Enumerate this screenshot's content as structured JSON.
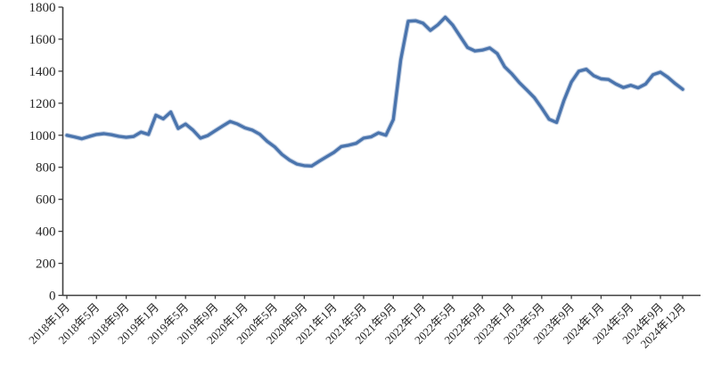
{
  "chart_data": {
    "type": "line",
    "title": "",
    "xlabel": "",
    "ylabel": "",
    "grid": false,
    "legend": "none",
    "frequency": "monthly",
    "line_color": "#4a74ad",
    "line_halo_color": "#93abce",
    "axis_color": "#3f3f3f",
    "tick_label_color": "#262626",
    "ylim": [
      0,
      1800
    ],
    "y_ticks": [
      0,
      200,
      400,
      600,
      800,
      1000,
      1200,
      1400,
      1600,
      1800
    ],
    "x_tick_labels": [
      "2018年1月",
      "2018年5月",
      "2018年9月",
      "2019年1月",
      "2019年5月",
      "2019年9月",
      "2020年1月",
      "2020年5月",
      "2020年9月",
      "2021年1月",
      "2021年5月",
      "2021年9月",
      "2022年1月",
      "2022年5月",
      "2022年9月",
      "2023年1月",
      "2023年5月",
      "2023年9月",
      "2024年1月",
      "2024年5月",
      "2024年9月",
      "2024年12月"
    ],
    "x_tick_month_indices": [
      0,
      4,
      8,
      12,
      16,
      20,
      24,
      28,
      32,
      36,
      40,
      44,
      48,
      52,
      56,
      60,
      64,
      68,
      72,
      76,
      80,
      83
    ],
    "x": [
      "2018-01",
      "2018-02",
      "2018-03",
      "2018-04",
      "2018-05",
      "2018-06",
      "2018-07",
      "2018-08",
      "2018-09",
      "2018-10",
      "2018-11",
      "2018-12",
      "2019-01",
      "2019-02",
      "2019-03",
      "2019-04",
      "2019-05",
      "2019-06",
      "2019-07",
      "2019-08",
      "2019-09",
      "2019-10",
      "2019-11",
      "2019-12",
      "2020-01",
      "2020-02",
      "2020-03",
      "2020-04",
      "2020-05",
      "2020-06",
      "2020-07",
      "2020-08",
      "2020-09",
      "2020-10",
      "2020-11",
      "2020-12",
      "2021-01",
      "2021-02",
      "2021-03",
      "2021-04",
      "2021-05",
      "2021-06",
      "2021-07",
      "2021-08",
      "2021-09",
      "2021-10",
      "2021-11",
      "2021-12",
      "2022-01",
      "2022-02",
      "2022-03",
      "2022-04",
      "2022-05",
      "2022-06",
      "2022-07",
      "2022-08",
      "2022-09",
      "2022-10",
      "2022-11",
      "2022-12",
      "2023-01",
      "2023-02",
      "2023-03",
      "2023-04",
      "2023-05",
      "2023-06",
      "2023-07",
      "2023-08",
      "2023-09",
      "2023-10",
      "2023-11",
      "2023-12",
      "2024-01",
      "2024-02",
      "2024-03",
      "2024-04",
      "2024-05",
      "2024-06",
      "2024-07",
      "2024-08",
      "2024-09",
      "2024-10",
      "2024-11",
      "2024-12"
    ],
    "values": [
      1000,
      990,
      978,
      992,
      1005,
      1010,
      1003,
      993,
      987,
      992,
      1020,
      1005,
      1125,
      1102,
      1145,
      1042,
      1070,
      1032,
      982,
      998,
      1028,
      1058,
      1086,
      1070,
      1046,
      1032,
      1006,
      962,
      928,
      880,
      845,
      820,
      810,
      808,
      838,
      866,
      893,
      930,
      938,
      950,
      982,
      990,
      1015,
      1000,
      1098,
      1470,
      1712,
      1715,
      1700,
      1655,
      1690,
      1737,
      1688,
      1618,
      1548,
      1526,
      1532,
      1545,
      1510,
      1428,
      1382,
      1328,
      1282,
      1235,
      1170,
      1100,
      1080,
      1218,
      1332,
      1400,
      1412,
      1372,
      1352,
      1348,
      1320,
      1298,
      1312,
      1296,
      1320,
      1378,
      1394,
      1362,
      1322,
      1287
    ]
  }
}
